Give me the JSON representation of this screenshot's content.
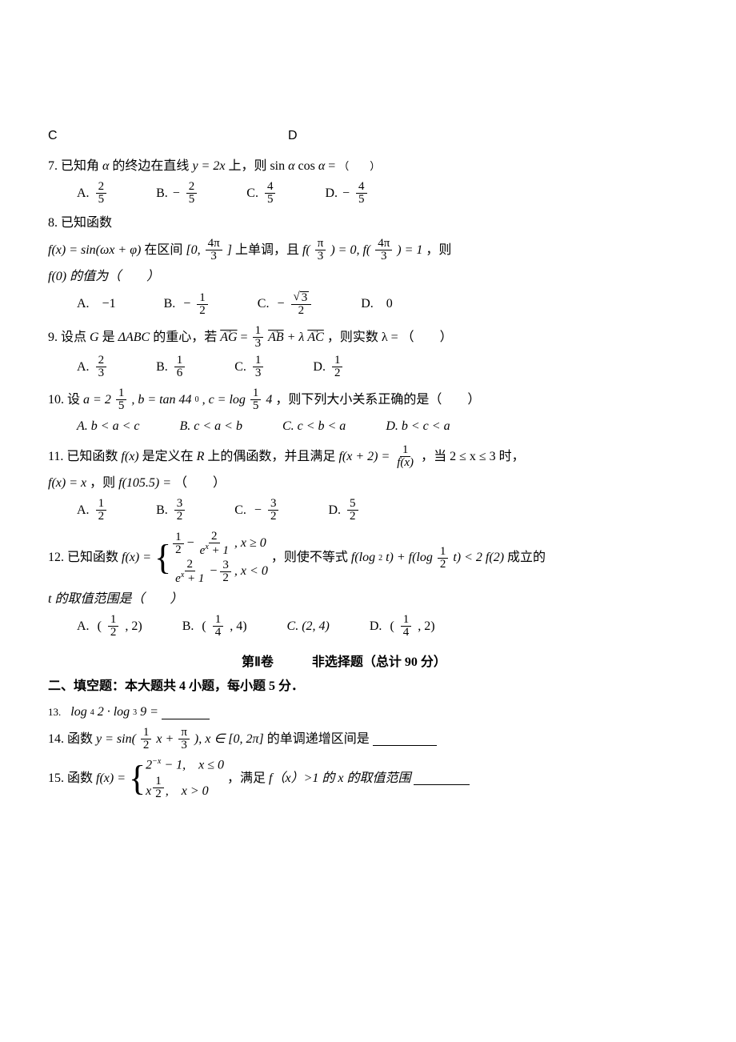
{
  "top_letters": {
    "C": "C",
    "D": "D"
  },
  "questions": {
    "q7": {
      "stem_a": "7. 已知角",
      "alpha": "α",
      "stem_b": "的终边在直线",
      "eq": "y = 2x",
      "stem_c": "上，则 sin",
      "stem_d": " cos",
      "stem_e": " = ",
      "paren": "（　　）",
      "A": "A.",
      "B": "B.",
      "C": "C.",
      "D": "D."
    },
    "q8": {
      "l1": "8. 已知函数",
      "fx": "f(x) = sin(ωx + φ)",
      "mid1": "在区间",
      "int_a": "[0,",
      "int_b": "]",
      "mid2": "上单调，且",
      "fa": "f(",
      "fb": ") = 0,",
      "fc": "f(",
      "fd": ") = 1",
      "tail": "，则",
      "l3": "f(0) 的值为（　　）",
      "A": "A.　−1",
      "B": "B.",
      "C": "C.",
      "D": "D.　0"
    },
    "q9": {
      "stem_a": "9. 设点",
      "G": "G",
      "stem_b": "是",
      "tri": "ΔABC",
      "stem_c": "的重心，若",
      "AG": "AG",
      "AB": "AB",
      "AC": "AC",
      "eq_mid": " = ",
      "plus_l": " + λ",
      "stem_d": "，则实数 λ = （　　）",
      "A": "A.",
      "B": "B.",
      "C": "C.",
      "D": "D."
    },
    "q10": {
      "stem_a": "10. 设",
      "a_eq": "a = 2",
      "b_eq": ", b = tan 44",
      "c_eq": ", c = log",
      "c_arg": " 4",
      "stem_b": "，则下列大小关系正确的是（　　）",
      "A": "A. b < a < c",
      "B": "B. c < a < b",
      "C": "C. c < b < a",
      "D": "D. b < c < a"
    },
    "q11": {
      "stem_a": "11. 已知函数",
      "fx": "f(x)",
      "stem_b": "是定义在",
      "R": "R",
      "stem_c": "上的偶函数，并且满足",
      "lhs": "f(x + 2) = ",
      "rhs_d": "f(x)",
      "stem_d": "，当 2 ≤ x ≤ 3 时，",
      "l2a": "f(x) = x",
      "l2b": "，则",
      "l2c": "f(105.5) = ",
      "paren": "（　　）",
      "A": "A.",
      "B": "B.",
      "C": "C.",
      "D": "D."
    },
    "q12": {
      "stem_a": "12. 已知函数",
      "fx": "f(x) = ",
      "p1a": " − ",
      "p1b": ", x ≥ 0",
      "p2a": " − ",
      "p2b": ", x < 0",
      "stem_b": "，则使不等式",
      "ineq_a": "f(log",
      "ineq_b": " t) + f(log",
      "ineq_c": " t) < 2 f(2)",
      "stem_c": "成立的",
      "l2": "t 的取值范围是（　　）",
      "A": "A.",
      "B": "B.",
      "C": "C. (2, 4)",
      "D": "D."
    }
  },
  "part2": {
    "title": "第Ⅱ卷　　　非选择题（总计 90 分）",
    "sub": "二、填空题：本大题共 4 小题，每小题 5 分．",
    "q13": {
      "pre": "13.",
      "expr": "log",
      "b1": "4",
      "a1": " 2 · log",
      "b2": "3",
      "a2": " 9 = "
    },
    "q14": {
      "pre": "14. 函数",
      "y": "y = sin(",
      "plus": " x + ",
      "close": "), x ∈ [0, 2π]",
      "tail": "的单调递增区间是"
    },
    "q15": {
      "pre": "15. 函数",
      "fx": "f(x) = ",
      "p1": "2",
      "p1e": "−x",
      "p1t": " − 1,　x ≤ 0",
      "p2a": "x",
      "p2t": ",　x > 0",
      "mid": "，满足",
      "cond": " f（x）>1 的 x 的取值范围"
    }
  },
  "nums": {
    "n1": "1",
    "n2": "2",
    "n3": "3",
    "n4": "4",
    "n5": "5",
    "n6": "6",
    "pi": "π",
    "4pi": "4π",
    "sqrt3": "3",
    "ex": "e",
    "half_exp": "1",
    "zero": "0"
  }
}
